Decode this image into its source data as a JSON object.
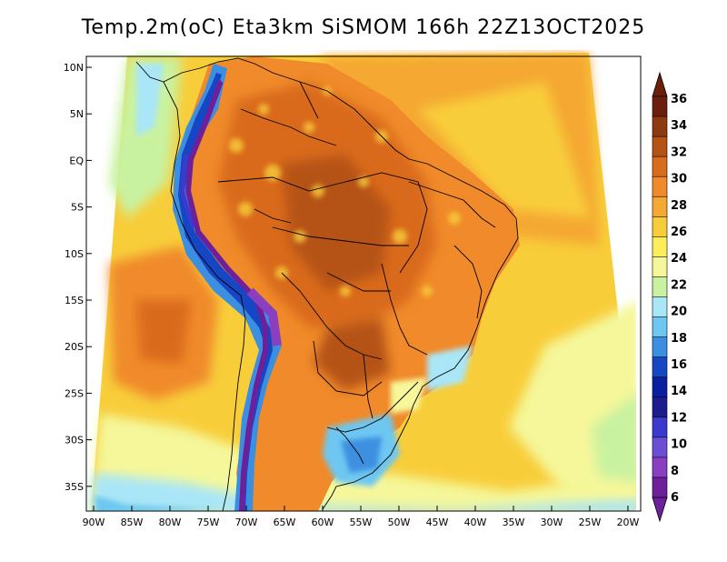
{
  "title": "Temp.2m(oC) Eta3km SiSMOM 166h 22Z13OCT2025",
  "latitude_labels": [
    "10N",
    "5N",
    "EQ",
    "5S",
    "10S",
    "15S",
    "20S",
    "25S",
    "30S",
    "35S"
  ],
  "longitude_labels": [
    "90W",
    "85W",
    "80W",
    "75W",
    "70W",
    "65W",
    "60W",
    "55W",
    "50W",
    "45W",
    "40W",
    "35W",
    "30W",
    "25W",
    "20W"
  ],
  "colorbar": {
    "labels": [
      "36",
      "34",
      "32",
      "30",
      "28",
      "26",
      "24",
      "22",
      "20",
      "18",
      "16",
      "14",
      "12",
      "10",
      "8",
      "6"
    ],
    "colors": [
      "#6b1f0a",
      "#8e3a10",
      "#b55315",
      "#d96b1c",
      "#f08a2a",
      "#f5a832",
      "#f8cd3a",
      "#fbee5a",
      "#f5f79a",
      "#c9f2a0",
      "#a9e6f7",
      "#6dc7f1",
      "#3c8fe0",
      "#1546c4",
      "#0a1fa0",
      "#1c1c8f",
      "#3a3acf",
      "#6a4fd6",
      "#8a3ec0",
      "#6e1f9a"
    ],
    "top_color": "#6b1f0a",
    "bottom_color": "#6e1f9a"
  }
}
